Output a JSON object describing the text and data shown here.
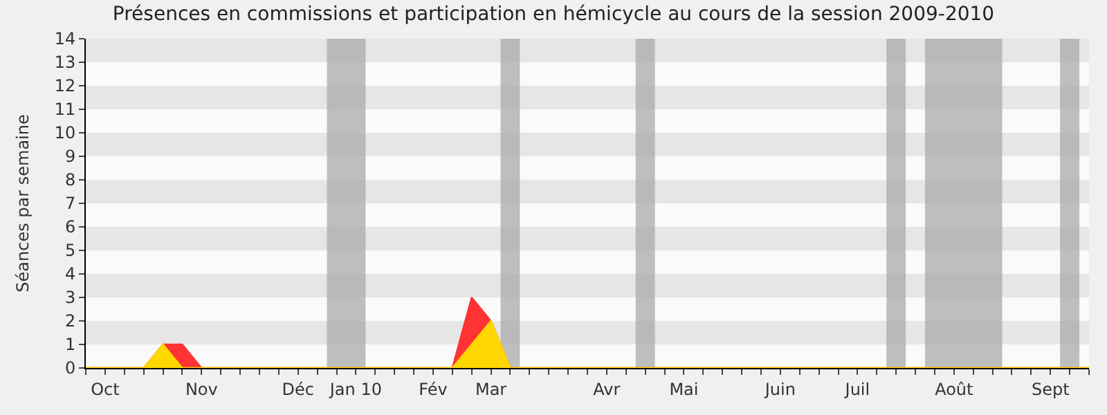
{
  "chart_data": {
    "type": "area",
    "title": "Présences en commissions et participation en hémicycle au cours de la session 2009-2010",
    "ylabel": "Séances par semaine",
    "categories": [
      null,
      "Oct",
      null,
      null,
      null,
      null,
      "Nov",
      null,
      null,
      null,
      null,
      "Déc",
      null,
      null,
      "Jan 10",
      null,
      null,
      null,
      "Fév",
      null,
      null,
      "Mar",
      null,
      null,
      null,
      null,
      null,
      "Avr",
      null,
      null,
      null,
      "Mai",
      null,
      null,
      null,
      null,
      "Juin",
      null,
      null,
      null,
      "Juil",
      null,
      null,
      null,
      null,
      "Août",
      null,
      null,
      null,
      null,
      "Sept",
      null,
      null
    ],
    "series": [
      {
        "color": "#ff3333",
        "values": [
          0,
          0,
          0,
          0,
          1,
          1,
          0,
          0,
          0,
          0,
          0,
          0,
          0,
          0,
          0,
          0,
          0,
          0,
          0,
          0,
          3,
          2,
          0,
          0,
          0,
          0,
          0,
          0,
          0,
          0,
          0,
          0,
          0,
          0,
          0,
          0,
          0,
          0,
          0,
          0,
          0,
          0,
          0,
          0,
          0,
          0,
          0,
          0,
          0,
          0,
          0,
          0,
          0
        ]
      },
      {
        "color": "#ffd700",
        "values": [
          0,
          0,
          0,
          0,
          1,
          0,
          0,
          0,
          0,
          0,
          0,
          0,
          0,
          0,
          0,
          0,
          0,
          0,
          0,
          0,
          1,
          2,
          0,
          0,
          0,
          0,
          0,
          0,
          0,
          0,
          0,
          0,
          0,
          0,
          0,
          0,
          0,
          0,
          0,
          0,
          0,
          0,
          0,
          0,
          0,
          0,
          0,
          0,
          0,
          0,
          0,
          0,
          0
        ]
      }
    ],
    "ylim": [
      0,
      14
    ],
    "yticks": [
      0,
      1,
      2,
      3,
      4,
      5,
      6,
      7,
      8,
      9,
      10,
      11,
      12,
      13,
      14
    ]
  }
}
